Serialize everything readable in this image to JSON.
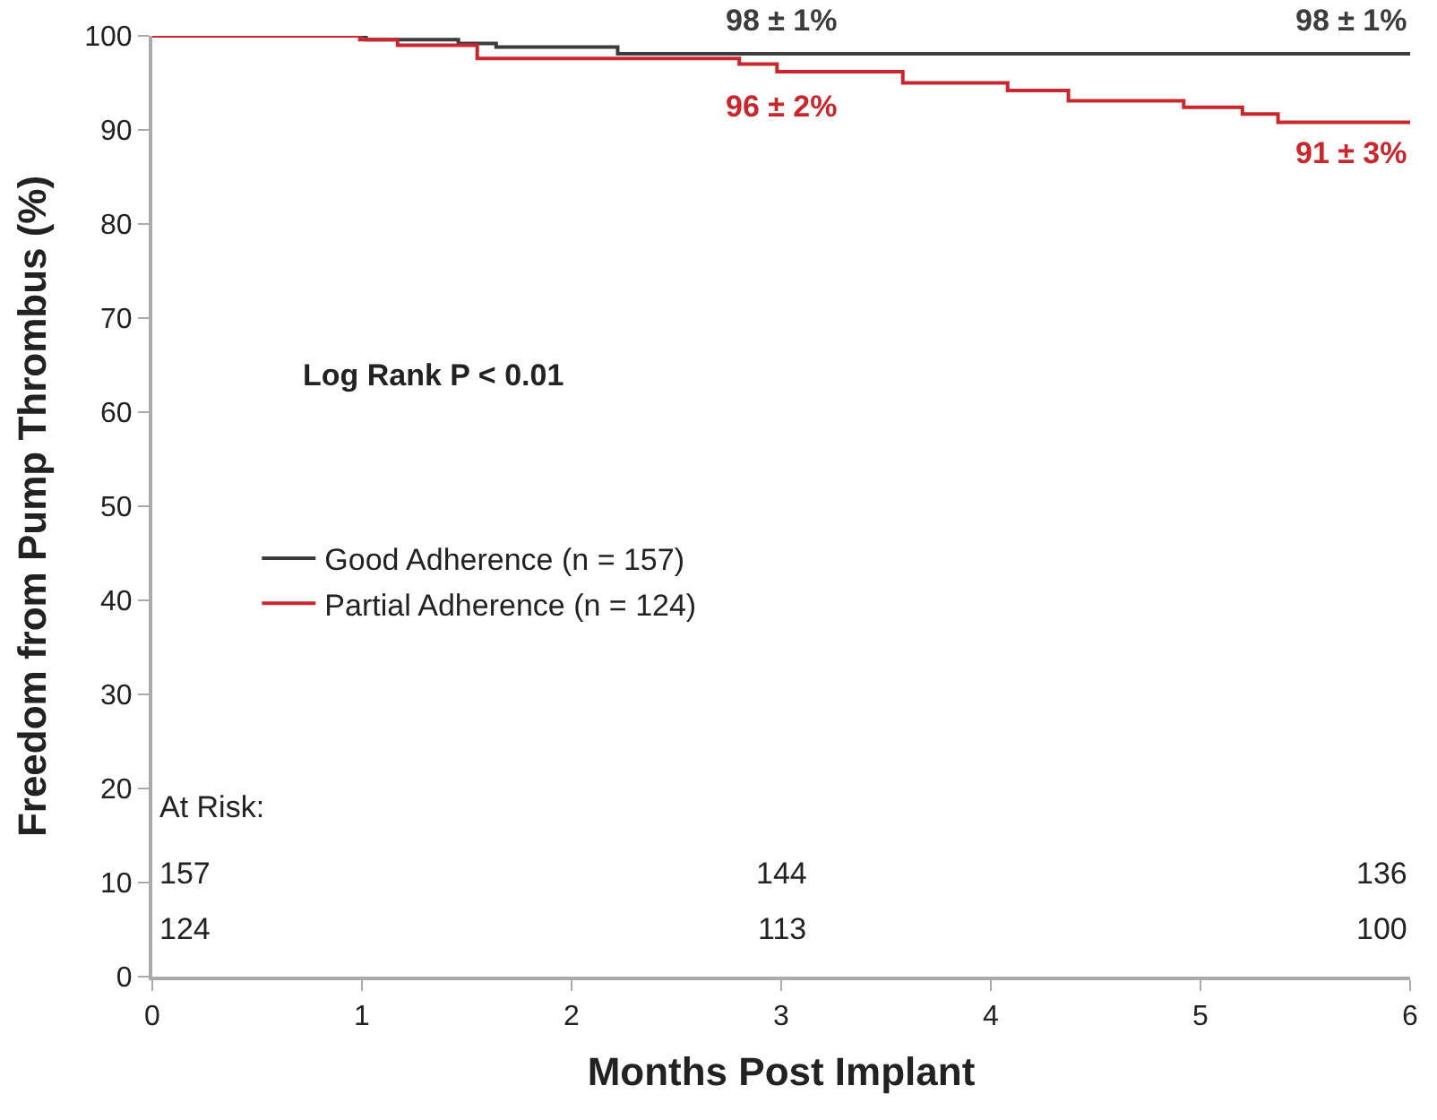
{
  "chart_data": {
    "type": "step",
    "xlabel": "Months Post Implant",
    "ylabel": "Freedom from Pump Thrombus (%)",
    "xlim": [
      0,
      6
    ],
    "xticks": [
      0,
      1,
      2,
      3,
      4,
      5,
      6
    ],
    "ylim": [
      0,
      100
    ],
    "yticks": [
      0,
      10,
      20,
      30,
      40,
      50,
      60,
      70,
      80,
      90,
      100
    ],
    "series": [
      {
        "name": "Good Adherence (n = 157)",
        "color": "#3c3c3c",
        "x": [
          0,
          1.02,
          1.46,
          1.64,
          2.22,
          6
        ],
        "values": [
          100,
          99.6,
          99.2,
          98.8,
          98.1,
          98.1
        ]
      },
      {
        "name": "Partial Adherence (n = 124)",
        "color": "#c8282d",
        "x": [
          0,
          0.99,
          1.17,
          1.55,
          2.8,
          2.98,
          3.58,
          4.08,
          4.37,
          4.92,
          5.2,
          5.37,
          6
        ],
        "values": [
          100,
          99.6,
          99.0,
          97.6,
          97.0,
          96.2,
          95.0,
          94.2,
          93.1,
          92.4,
          91.7,
          90.8,
          90.8
        ]
      }
    ],
    "annotations": [
      "98 ± 1%",
      "98 ± 1%",
      "96 ± 2%",
      "91 ± 3%",
      "Log Rank P < 0.01",
      "At Risk:",
      "157",
      "144",
      "136",
      "124",
      "113",
      "100"
    ],
    "legend": "left",
    "marker": "none",
    "line_style": "solid"
  }
}
